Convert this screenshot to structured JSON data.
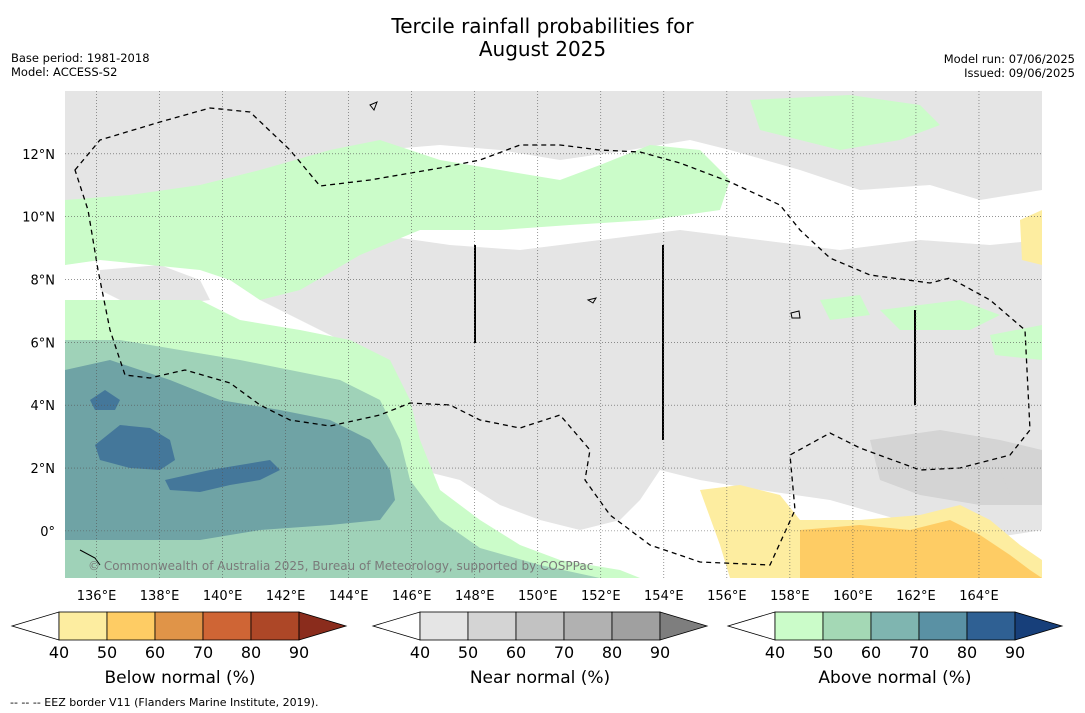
{
  "title_line1": "Tercile rainfall probabilities for",
  "title_line2": "August 2025",
  "base_period": "Base period: 1981-2018",
  "model": "Model: ACCESS-S2",
  "model_run": "Model run: 07/06/2025",
  "issued": "Issued: 09/06/2025",
  "copyright": "© Commonwealth of Australia 2025, Bureau of Meteorology, supported by COSPPac",
  "footnote": "--  --  -- EEZ border V11 (Flanders Marine Institute, 2019).",
  "chart_data": {
    "type": "heatmap",
    "x_ticks": [
      "136°E",
      "138°E",
      "140°E",
      "142°E",
      "144°E",
      "146°E",
      "148°E",
      "150°E",
      "152°E",
      "154°E",
      "156°E",
      "158°E",
      "160°E",
      "162°E",
      "164°E"
    ],
    "x_values": [
      136,
      138,
      140,
      142,
      144,
      146,
      148,
      150,
      152,
      154,
      156,
      158,
      160,
      162,
      164
    ],
    "y_ticks": [
      "12°N",
      "10°N",
      "8°N",
      "6°N",
      "4°N",
      "2°N",
      "0°"
    ],
    "y_values": [
      12,
      10,
      8,
      6,
      4,
      2,
      0
    ],
    "xlim": [
      135.0,
      166.0
    ],
    "ylim": [
      -1.5,
      14.0
    ],
    "grid": true,
    "colorbars": [
      {
        "title": "Below normal (%)",
        "ticks": [
          "40",
          "50",
          "60",
          "70",
          "80",
          "90"
        ],
        "colors": [
          "#ffffff",
          "#fdeda0",
          "#fecc64",
          "#e09448",
          "#cf6535",
          "#ad4727",
          "#8a2c1c"
        ]
      },
      {
        "title": "Near normal (%)",
        "ticks": [
          "40",
          "50",
          "60",
          "70",
          "80",
          "90"
        ],
        "colors": [
          "#ffffff",
          "#e5e5e5",
          "#d4d4d4",
          "#c2c2c2",
          "#b1b1b1",
          "#a0a0a0",
          "#7e7e7e"
        ]
      },
      {
        "title": "Above normal (%)",
        "ticks": [
          "40",
          "50",
          "60",
          "70",
          "80",
          "90"
        ],
        "colors": [
          "#ffffff",
          "#cbfcc9",
          "#a4d8b5",
          "#7fb5b0",
          "#5a91a4",
          "#2f6093",
          "#173f7a"
        ]
      }
    ],
    "map_colors": {
      "near50": "#e5e5e5",
      "near60": "#d4d4d4",
      "above50": "#cbfcc9",
      "above60": "#9fd2b8",
      "above70": "#6fa3a5",
      "above80": "#44779a",
      "below50": "#fdeda0",
      "below60": "#fecc64"
    }
  }
}
